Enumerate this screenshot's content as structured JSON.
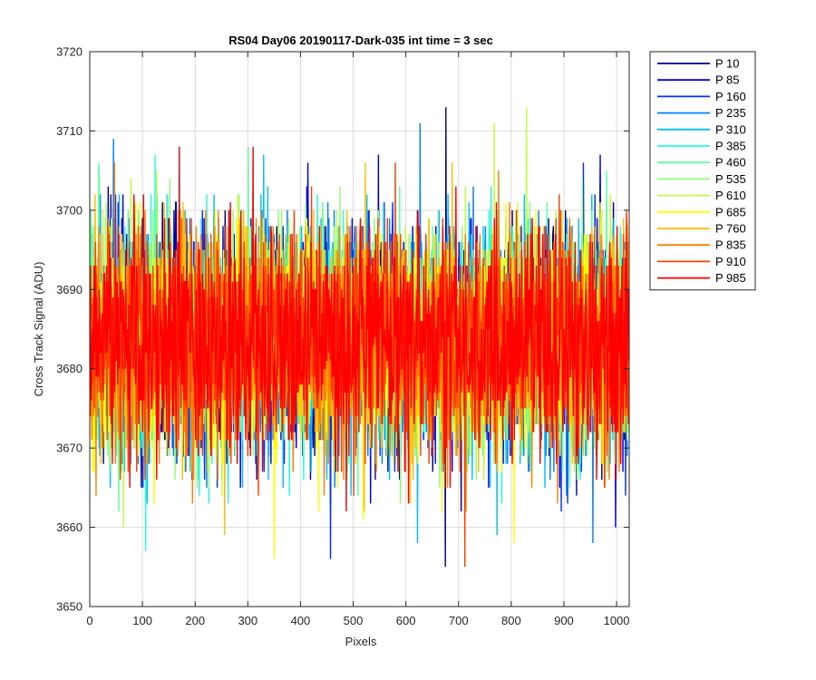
{
  "chart_data": {
    "type": "line",
    "title": "RS04 Day06 20190117-Dark-035 int time = 3 sec",
    "xlabel": "Pixels",
    "ylabel": "Cross Track Signal (ADU)",
    "xlim": [
      0,
      1024
    ],
    "ylim": [
      3650,
      3720
    ],
    "x_ticks": [
      0,
      100,
      200,
      300,
      400,
      500,
      600,
      700,
      800,
      900,
      1000
    ],
    "y_ticks": [
      3650,
      3660,
      3670,
      3680,
      3690,
      3700,
      3710,
      3720
    ],
    "grid": true,
    "legend_position": "outside-right",
    "series_summary": {
      "mean": 3683.5,
      "typical_min": 3665,
      "typical_max": 3702
    },
    "series": [
      {
        "name": "P 10",
        "color": "#00008f",
        "seed": 11,
        "spikes": [
          [
            676,
            3713
          ],
          [
            675,
            3655
          ],
          [
            548,
            3707
          ]
        ]
      },
      {
        "name": "P 85",
        "color": "#0000df",
        "seed": 23,
        "spikes": [
          [
            969,
            3707
          ],
          [
            998,
            3660
          ],
          [
            414,
            3706
          ]
        ]
      },
      {
        "name": "P 160",
        "color": "#0030ff",
        "seed": 37,
        "spikes": [
          [
            937,
            3706
          ],
          [
            457,
            3656
          ],
          [
            112,
            3668
          ]
        ]
      },
      {
        "name": "P 235",
        "color": "#0080ff",
        "seed": 41,
        "spikes": [
          [
            627,
            3711
          ],
          [
            45,
            3709
          ],
          [
            955,
            3658
          ]
        ]
      },
      {
        "name": "P 310",
        "color": "#00bfff",
        "seed": 53,
        "spikes": [
          [
            330,
            3707
          ],
          [
            622,
            3658
          ],
          [
            773,
            3659
          ]
        ]
      },
      {
        "name": "P 385",
        "color": "#20ffdf",
        "seed": 67,
        "spikes": [
          [
            106,
            3657
          ],
          [
            124,
            3707
          ],
          [
            263,
            3663
          ]
        ]
      },
      {
        "name": "P 460",
        "color": "#60ffa0",
        "seed": 71,
        "spikes": [
          [
            17,
            3706
          ],
          [
            301,
            3708
          ],
          [
            590,
            3664
          ]
        ]
      },
      {
        "name": "P 535",
        "color": "#90ff70",
        "seed": 83,
        "spikes": [
          [
            935,
            3704
          ],
          [
            226,
            3665
          ],
          [
            410,
            3701
          ]
        ]
      },
      {
        "name": "P 610",
        "color": "#c0ff40",
        "seed": 97,
        "spikes": [
          [
            829,
            3713
          ],
          [
            768,
            3711
          ],
          [
            64,
            3660
          ]
        ]
      },
      {
        "name": "P 685",
        "color": "#ffff00",
        "seed": 101,
        "spikes": [
          [
            350,
            3656
          ],
          [
            805,
            3658
          ],
          [
            519,
            3661
          ]
        ]
      },
      {
        "name": "P 760",
        "color": "#ffbf00",
        "seed": 113,
        "spikes": [
          [
            256,
            3659
          ],
          [
            523,
            3706
          ],
          [
            688,
            3706
          ]
        ]
      },
      {
        "name": "P 835",
        "color": "#ff8000",
        "seed": 127,
        "spikes": [
          [
            47,
            3706
          ],
          [
            888,
            3663
          ],
          [
            714,
            3662
          ]
        ]
      },
      {
        "name": "P 910",
        "color": "#ff4000",
        "seed": 131,
        "spikes": [
          [
            712,
            3655
          ],
          [
            320,
            3664
          ],
          [
            580,
            3706
          ]
        ]
      },
      {
        "name": "P 985",
        "color": "#ff0000",
        "seed": 139,
        "spikes": [
          [
            170,
            3708
          ],
          [
            310,
            3708
          ],
          [
            605,
            3663
          ]
        ]
      }
    ]
  }
}
